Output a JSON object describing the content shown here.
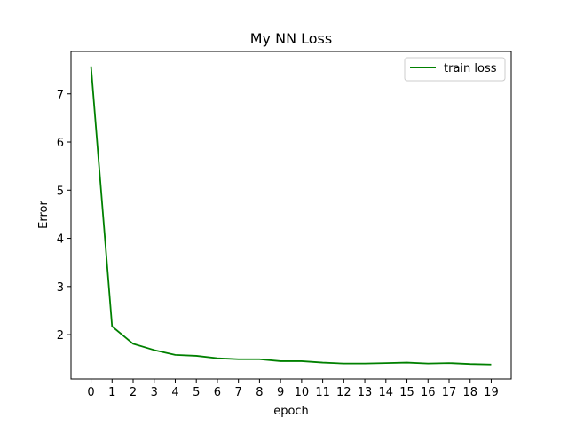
{
  "chart_data": {
    "type": "line",
    "title": "My NN Loss",
    "xlabel": "epoch",
    "ylabel": "Error",
    "x": [
      0,
      1,
      2,
      3,
      4,
      5,
      6,
      7,
      8,
      9,
      10,
      11,
      12,
      13,
      14,
      15,
      16,
      17,
      18,
      19
    ],
    "xticks": [
      "0",
      "1",
      "2",
      "3",
      "4",
      "5",
      "6",
      "7",
      "8",
      "9",
      "10",
      "11",
      "12",
      "13",
      "14",
      "15",
      "16",
      "17",
      "18",
      "19"
    ],
    "yticks": [
      "2",
      "3",
      "4",
      "5",
      "6",
      "7"
    ],
    "xlim": [
      -0.95,
      19.95
    ],
    "ylim": [
      1.08,
      7.88
    ],
    "grid": false,
    "legend_position": "top-right",
    "series": [
      {
        "name": "train loss",
        "color": "#008000",
        "values": [
          7.57,
          2.17,
          1.81,
          1.68,
          1.58,
          1.56,
          1.51,
          1.49,
          1.49,
          1.45,
          1.45,
          1.42,
          1.4,
          1.4,
          1.41,
          1.42,
          1.4,
          1.41,
          1.39,
          1.38
        ]
      }
    ]
  }
}
